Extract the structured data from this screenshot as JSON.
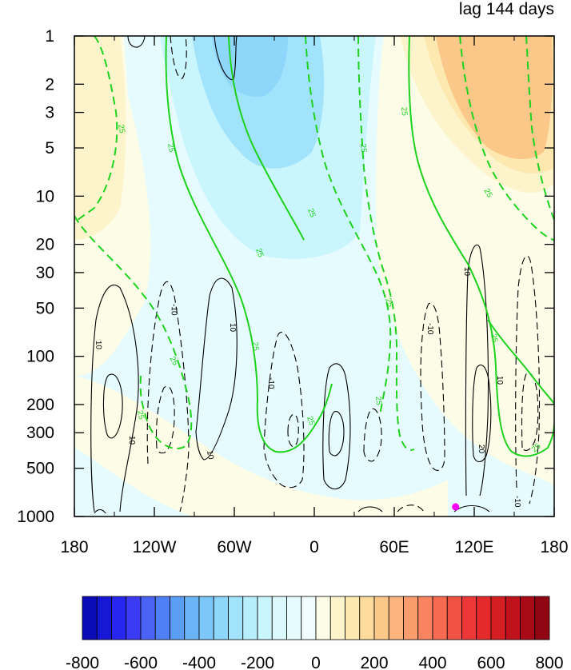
{
  "chart_data": {
    "type": "heatmap",
    "title_right": "lag 144 days",
    "x_tick_labels": [
      "180",
      "120W",
      "60W",
      "0",
      "60E",
      "120E",
      "180"
    ],
    "x_ticks_deg": [
      -180,
      -120,
      -60,
      0,
      60,
      120,
      180
    ],
    "y_tick_labels": [
      "1",
      "2",
      "3",
      "5",
      "10",
      "20",
      "30",
      "50",
      "100",
      "200",
      "300",
      "500",
      "1000"
    ],
    "y_ticks_hpa": [
      1,
      2,
      3,
      5,
      10,
      20,
      30,
      50,
      100,
      200,
      300,
      500,
      1000
    ],
    "xlim": [
      -180,
      180
    ],
    "ylim_hpa": [
      1000,
      1
    ],
    "y_scale": "log",
    "colorbar": {
      "levels": [
        -800,
        -750,
        -700,
        -650,
        -600,
        -550,
        -500,
        -450,
        -400,
        -350,
        -300,
        -250,
        -200,
        -150,
        -100,
        -50,
        0,
        50,
        100,
        150,
        200,
        250,
        300,
        350,
        400,
        450,
        500,
        550,
        600,
        650,
        700,
        750,
        800
      ],
      "tick_labels": [
        "-800",
        "-600",
        "-400",
        "-200",
        "0",
        "200",
        "400",
        "600",
        "800"
      ],
      "colors": [
        "#0b0bb8",
        "#1717d6",
        "#2626ee",
        "#3b3bf5",
        "#4a63f5",
        "#4f80f5",
        "#5a9ef5",
        "#6ab3f5",
        "#7cc6f8",
        "#8fd6fb",
        "#a2e3fc",
        "#b7eefd",
        "#c9f5fd",
        "#dbf9fd",
        "#e6fbfd",
        "#f0fcfd",
        "#fdfce6",
        "#fdf4cc",
        "#fde8b0",
        "#fddb9c",
        "#fcc88a",
        "#fbb47e",
        "#fa9c6c",
        "#f88460",
        "#f56a50",
        "#f25244",
        "#ee3838",
        "#e42a2a",
        "#d41e22",
        "#c0121c",
        "#a80a16",
        "#900612"
      ]
    },
    "contour_labels_black": [
      "10",
      "-10",
      "10",
      "10",
      "-10",
      "-10",
      "10",
      "20"
    ],
    "contour_labels_green": [
      "25"
    ],
    "marker": {
      "lon": 106,
      "p_hpa": 870,
      "color": "#ff00ff"
    },
    "colors": {
      "green_contour": "#1ed21e",
      "black_contour": "#000000"
    }
  }
}
